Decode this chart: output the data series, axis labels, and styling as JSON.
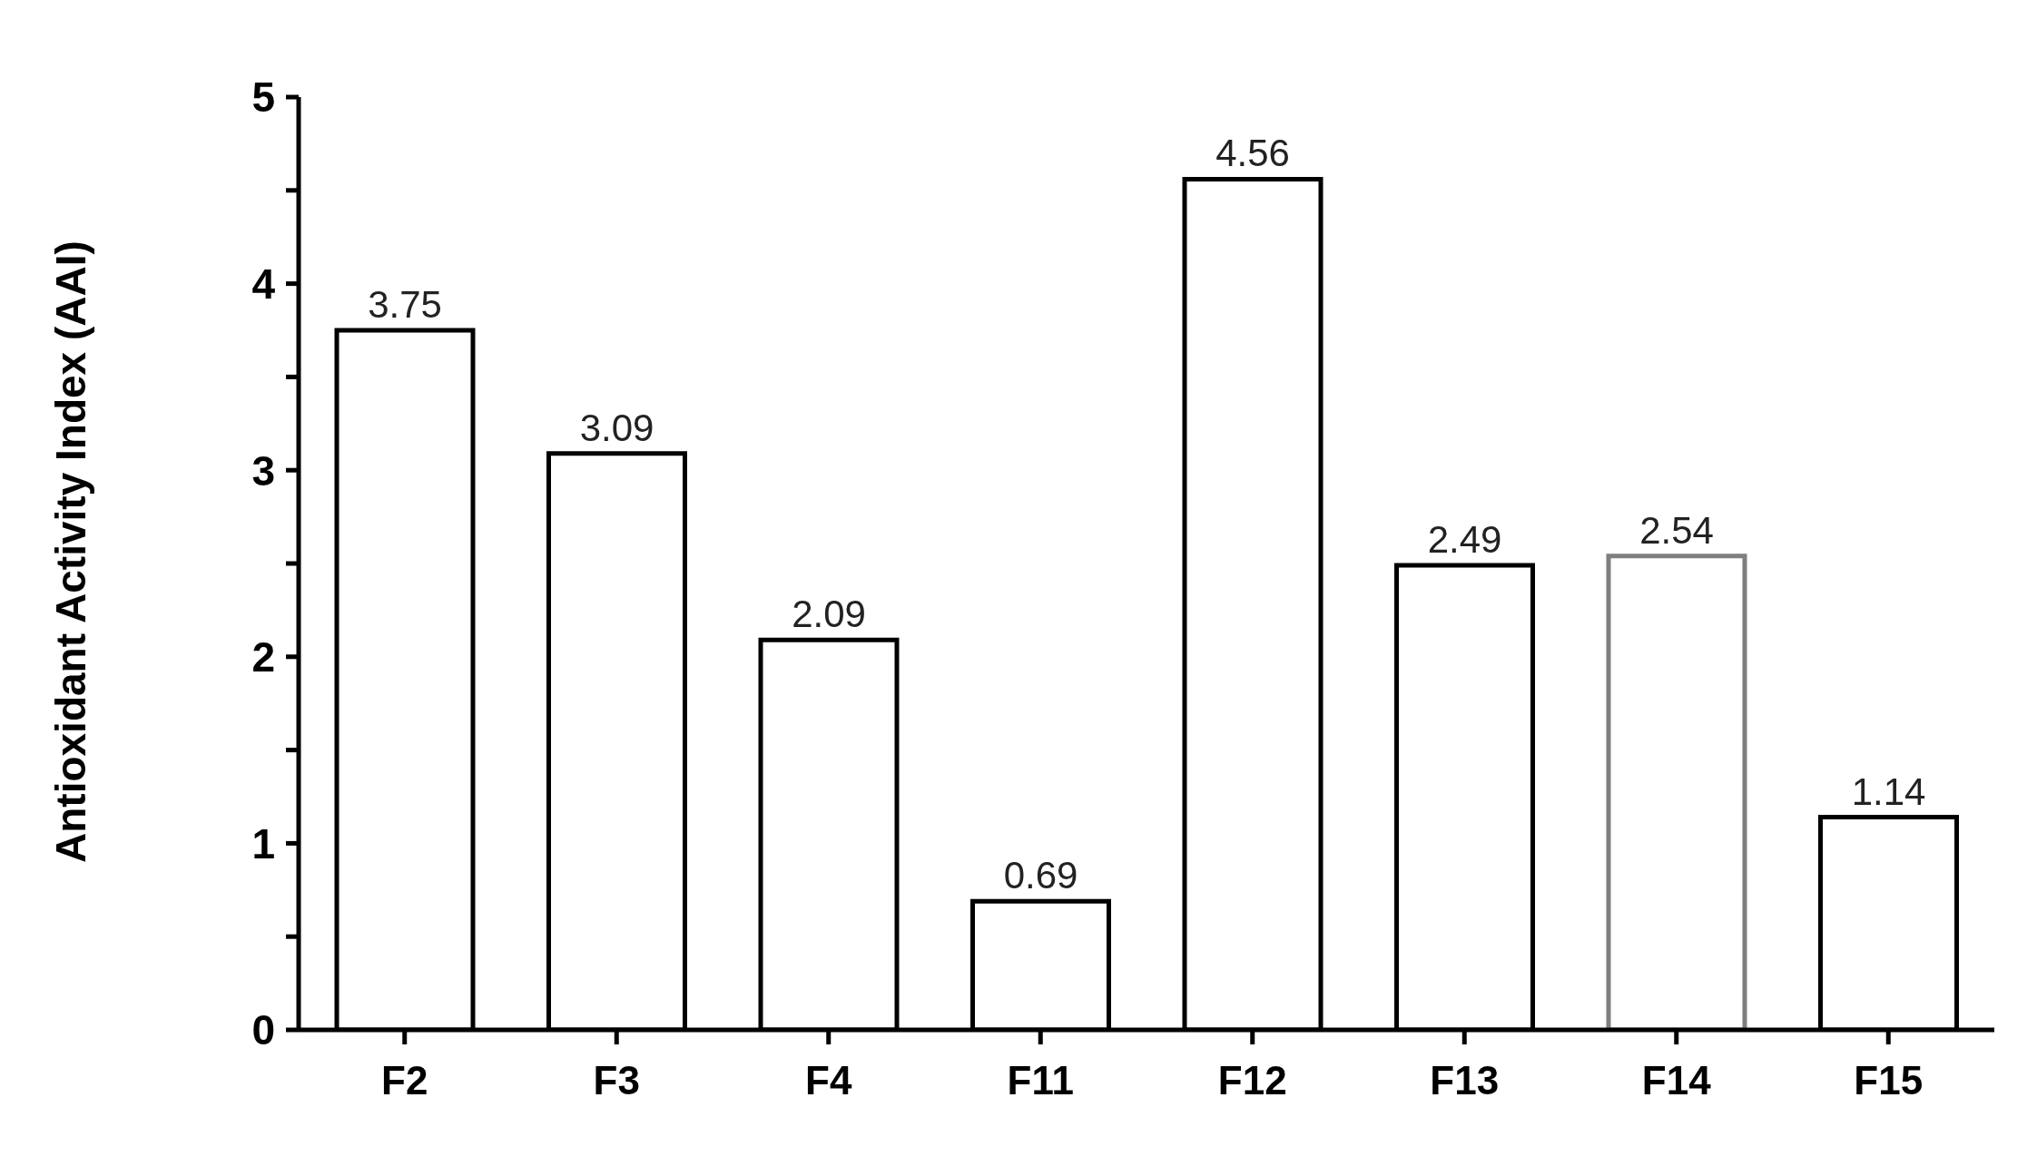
{
  "chart_data": {
    "type": "bar",
    "ylabel": "Antioxidant Activity Index  (AAI)",
    "categories": [
      "F2",
      "F3",
      "F4",
      "F11",
      "F12",
      "F13",
      "F14",
      "F15"
    ],
    "values": [
      3.75,
      3.09,
      2.09,
      0.69,
      4.56,
      2.49,
      2.54,
      1.14
    ],
    "colors": [
      "#000000",
      "#000000",
      "#000000",
      "#000000",
      "#000000",
      "#000000",
      "#7f7f7f",
      "#000000"
    ],
    "ylim": [
      0,
      5
    ],
    "yticks": [
      0,
      {
        "value": 0.5,
        "label": null
      },
      1,
      {
        "value": 1.5,
        "label": null
      },
      2,
      {
        "value": 2.5,
        "label": null
      },
      3,
      {
        "value": 3.5,
        "label": null
      },
      4,
      {
        "value": 4.5,
        "label": null
      },
      5
    ],
    "data_labels": true,
    "grid": false,
    "legend": false
  }
}
